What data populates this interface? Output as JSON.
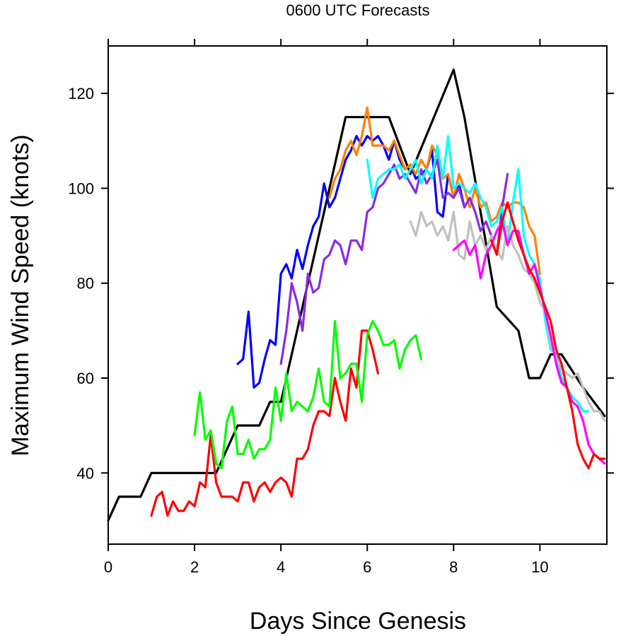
{
  "chart_data": {
    "type": "line",
    "title": "0600 UTC Forecasts",
    "xlabel": "Days Since Genesis",
    "ylabel": "Maximum Wind Speed (knots)",
    "xlim": [
      0,
      11.55
    ],
    "ylim": [
      25,
      130
    ],
    "x_ticks": [
      0,
      2,
      4,
      6,
      8,
      10
    ],
    "x_tick_labels": [
      "0",
      "2",
      "4",
      "6",
      "8",
      "10"
    ],
    "y_ticks": [
      40,
      60,
      80,
      100,
      120
    ],
    "y_tick_labels": [
      "40",
      "60",
      "80",
      "100",
      "120"
    ],
    "grid": false,
    "series": [
      {
        "color": "#000000",
        "x": [
          0,
          0.25,
          0.75,
          1.0,
          2.5,
          3.0,
          3.5,
          3.75,
          4.0,
          5.5,
          6.5,
          7.0,
          8.0,
          8.25,
          9.0,
          9.5,
          9.75,
          10.0,
          10.25,
          10.5,
          11.0,
          11.5
        ],
        "y": [
          30,
          35,
          35,
          40,
          40,
          50,
          50,
          55,
          55,
          115,
          115,
          103,
          125,
          115,
          75,
          70,
          60,
          60,
          65,
          65,
          58,
          52
        ]
      },
      {
        "color": "#0000ff",
        "x": [
          3.0,
          3.125,
          3.25,
          3.375,
          3.5,
          3.625,
          3.75,
          3.875,
          4.0,
          4.125,
          4.25,
          4.375,
          4.5,
          4.625,
          4.75,
          4.875,
          5.0,
          5.125,
          5.25,
          5.375,
          5.5,
          5.625,
          5.75,
          5.875,
          6.0,
          6.125,
          6.25,
          6.375,
          6.5,
          6.625,
          6.75,
          6.875,
          7.0,
          7.125,
          7.25,
          7.375,
          7.5,
          7.625,
          7.75,
          7.875,
          8.0,
          8.125,
          8.25
        ],
        "y": [
          63,
          64,
          74,
          58,
          59,
          64,
          68,
          67,
          82,
          84,
          81,
          87,
          83,
          88,
          92,
          94,
          101,
          96,
          98,
          102,
          106,
          108,
          111,
          109,
          111,
          110,
          111,
          109,
          106,
          110,
          106,
          104,
          105,
          102,
          103,
          104,
          108,
          95,
          94,
          103,
          98,
          101,
          96
        ]
      },
      {
        "color": "#ff8000",
        "x": [
          5.125,
          5.25,
          5.375,
          5.5,
          5.625,
          5.75,
          5.875,
          6.0,
          6.125,
          6.25,
          6.375,
          6.5,
          6.625,
          6.75,
          6.875,
          7.0,
          7.125,
          7.25,
          7.375,
          7.5,
          7.625,
          7.75,
          7.875,
          8.0,
          8.125,
          8.25,
          8.375,
          8.5,
          8.625,
          8.75,
          8.875,
          9.0,
          9.125,
          9.25,
          9.375,
          9.5,
          9.625,
          9.75,
          9.875,
          10.0
        ],
        "y": [
          98,
          102,
          104,
          108,
          110,
          107,
          111,
          117,
          109,
          109,
          109,
          108,
          110,
          107,
          104,
          105,
          103,
          106,
          104,
          109,
          107,
          102,
          103,
          98,
          103,
          100,
          96,
          100,
          96,
          97,
          93,
          94,
          97,
          96,
          97,
          97,
          96,
          92,
          90,
          82
        ]
      },
      {
        "color": "#8a2be2",
        "x": [
          4.0,
          4.125,
          4.25,
          4.375,
          4.5,
          4.625,
          4.75,
          4.875,
          5.0,
          5.125,
          5.25,
          5.375,
          5.5,
          5.625,
          5.75,
          5.875,
          6.0,
          6.125,
          6.25,
          6.375,
          6.5,
          6.625,
          6.75,
          6.875,
          7.0,
          7.125,
          7.25,
          7.375,
          7.5,
          7.625,
          7.75,
          7.875,
          8.0,
          8.125,
          8.25,
          8.375,
          8.5,
          8.625,
          8.75,
          8.875,
          9.0,
          9.125,
          9.25
        ],
        "y": [
          63,
          70,
          80,
          76,
          70,
          82,
          78,
          79,
          85,
          86,
          89,
          88,
          84,
          89,
          89,
          87,
          95,
          96,
          100,
          101,
          103,
          105,
          102,
          103,
          101,
          99,
          104,
          101,
          103,
          106,
          98,
          99,
          98,
          100,
          96,
          98,
          95,
          91,
          93,
          90,
          86,
          96,
          103
        ]
      },
      {
        "color": "#00ffff",
        "x": [
          6.0,
          6.125,
          6.25,
          6.375,
          6.5,
          6.625,
          6.75,
          6.875,
          7.0,
          7.125,
          7.25,
          7.375,
          7.5,
          7.625,
          7.75,
          7.875,
          8.0,
          8.125,
          8.25,
          8.375,
          8.5,
          8.625,
          8.75,
          8.875,
          9.0,
          9.125,
          9.25,
          9.375,
          9.5,
          9.625,
          9.75,
          9.875,
          10.0,
          10.125,
          10.25,
          10.375,
          10.5,
          10.625,
          10.75,
          10.875,
          11.0,
          11.125
        ],
        "y": [
          106,
          98,
          102,
          103,
          104,
          104,
          105,
          102,
          104,
          106,
          101,
          104,
          102,
          109,
          102,
          111,
          100,
          101,
          100,
          99,
          101,
          98,
          96,
          92,
          93,
          96,
          88,
          97,
          104,
          90,
          86,
          84,
          81,
          72,
          66,
          65,
          60,
          58,
          56,
          55,
          53,
          53
        ]
      },
      {
        "color": "#c0c0c0",
        "x": [
          7.0,
          7.125,
          7.25,
          7.375,
          7.5,
          7.625,
          7.75,
          7.875,
          8.0,
          8.125,
          8.25,
          8.375,
          8.5,
          8.625,
          8.75,
          8.875,
          9.0,
          9.125,
          9.25,
          9.375,
          9.5,
          9.625,
          9.75,
          9.875,
          10.0,
          10.125,
          10.25,
          10.375,
          10.5,
          10.625,
          10.75,
          10.875,
          11.0,
          11.125,
          11.25,
          11.375,
          11.5
        ],
        "y": [
          93,
          90,
          95,
          92,
          93,
          90,
          92,
          89,
          95,
          86,
          85,
          93,
          88,
          90,
          87,
          90,
          87,
          85,
          92,
          88,
          86,
          83,
          82,
          80,
          76,
          74,
          67,
          64,
          62,
          61,
          60,
          61,
          58,
          55,
          53,
          53,
          51
        ]
      },
      {
        "color": "#ff00ff",
        "x": [
          8.0,
          8.125,
          8.25,
          8.375,
          8.5,
          8.625,
          8.75,
          8.875,
          9.0,
          9.125,
          9.25,
          9.375,
          9.5,
          9.625,
          9.75,
          9.875,
          10.0,
          10.125,
          10.25,
          10.375,
          10.5,
          10.625,
          10.75,
          10.875,
          11.0,
          11.125,
          11.25,
          11.375,
          11.5
        ],
        "y": [
          87,
          88,
          89,
          86,
          88,
          81,
          86,
          88,
          91,
          93,
          88,
          91,
          91,
          86,
          82,
          84,
          79,
          74,
          69,
          63,
          59,
          58,
          55,
          54,
          51,
          46,
          44,
          43,
          42
        ]
      },
      {
        "color": "#ff0000",
        "x": [
          1.0,
          1.125,
          1.25,
          1.375,
          1.5,
          1.625,
          1.75,
          1.875,
          2.0,
          2.125,
          2.25,
          2.375,
          2.5,
          2.625,
          2.75,
          2.875,
          3.0,
          3.125,
          3.25,
          3.375,
          3.5,
          3.625,
          3.75,
          3.875,
          4.0,
          4.125,
          4.25,
          4.375,
          4.5,
          4.625,
          4.75,
          4.875,
          5.0,
          5.125,
          5.25,
          5.375,
          5.5,
          5.625,
          5.75,
          5.875,
          6.0,
          6.125,
          6.25,
          null,
          8.875,
          9.0,
          9.125,
          9.25,
          9.375,
          9.5,
          9.625,
          9.75,
          9.875,
          10.0,
          10.125,
          10.25,
          10.375,
          10.5,
          10.625,
          10.75,
          10.875,
          11.0,
          11.125,
          11.25,
          11.375,
          11.5
        ],
        "y": [
          31,
          35,
          36,
          31,
          34,
          32,
          32,
          34,
          33,
          38,
          37,
          48,
          38,
          35,
          35,
          35,
          34,
          38,
          38,
          34,
          37,
          38,
          36,
          38,
          39,
          38,
          35,
          43,
          43,
          45,
          50,
          53,
          53,
          52,
          60,
          55,
          51,
          62,
          58,
          70,
          70,
          66,
          61,
          null,
          89,
          86,
          93,
          97,
          93,
          89,
          86,
          83,
          81,
          78,
          75,
          72,
          66,
          63,
          58,
          53,
          46,
          43,
          41,
          44,
          43,
          43
        ]
      },
      {
        "color": "#00ff00",
        "x": [
          2.0,
          2.125,
          2.25,
          2.375,
          2.5,
          2.625,
          2.75,
          2.875,
          3.0,
          3.125,
          3.25,
          3.375,
          3.5,
          3.625,
          3.75,
          3.875,
          4.0,
          4.125,
          4.25,
          4.375,
          4.5,
          4.625,
          4.75,
          4.875,
          5.0,
          5.125,
          5.25,
          5.375,
          5.5,
          5.625,
          5.75,
          5.875,
          6.0,
          6.125,
          6.25,
          6.375,
          6.5,
          6.625,
          6.75,
          6.875,
          7.0,
          7.125,
          7.25
        ],
        "y": [
          48,
          57,
          47,
          49,
          42,
          41,
          51,
          54,
          44,
          44,
          47,
          43,
          45,
          45,
          47,
          58,
          51,
          61,
          53,
          55,
          54,
          53,
          56,
          62,
          55,
          54,
          72,
          60,
          61,
          63,
          63,
          55,
          69,
          72,
          70,
          67,
          67,
          68,
          62,
          66,
          68,
          69,
          64
        ]
      }
    ]
  }
}
